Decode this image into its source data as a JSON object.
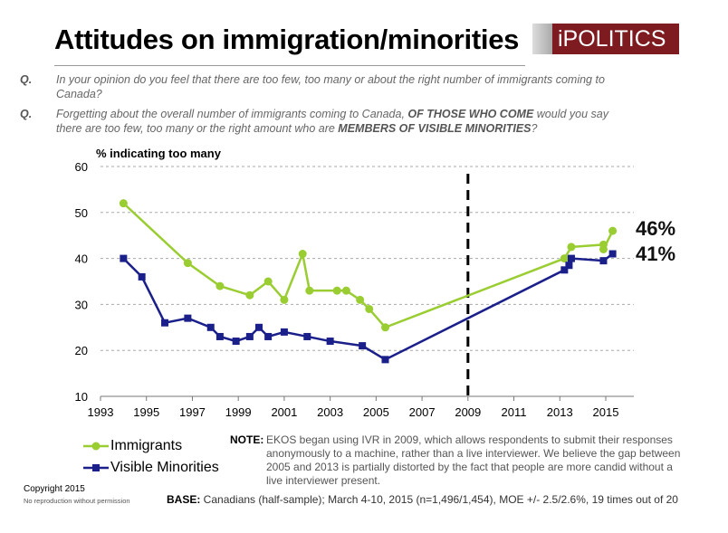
{
  "header": {
    "title": "Attitudes on immigration/minorities",
    "logo_text": "iPOLITICS"
  },
  "questions": [
    {
      "label": "Q.",
      "parts": [
        {
          "text": "In your opinion do you feel that there are too few, too many or about the right number of immigrants coming to Canada?",
          "bold": false
        }
      ]
    },
    {
      "label": "Q.",
      "parts": [
        {
          "text": "Forgetting about the overall number of immigrants coming to Canada, ",
          "bold": false
        },
        {
          "text": "OF THOSE WHO COME",
          "bold": true
        },
        {
          "text": " would you say there are too few, too many or the right amount who are ",
          "bold": false
        },
        {
          "text": "MEMBERS OF VISIBLE MINORITIES",
          "bold": true
        },
        {
          "text": "?",
          "bold": false
        }
      ]
    }
  ],
  "chart_data": {
    "type": "line",
    "ylabel": "% indicating too many",
    "xlim": [
      1993,
      2015
    ],
    "ylim": [
      10,
      60
    ],
    "xticks": [
      1993,
      1995,
      1997,
      1999,
      2001,
      2003,
      2005,
      2007,
      2009,
      2011,
      2013,
      2015
    ],
    "yticks": [
      10,
      20,
      30,
      40,
      50,
      60
    ],
    "grid": "horizontal dashed",
    "reference_line": {
      "x": 2009,
      "style": "dashed"
    },
    "legend_position": "bottom-left",
    "series": [
      {
        "name": "Immigrants",
        "color": "#9acd32",
        "marker": "circle",
        "x": [
          1994,
          1996.8,
          1998.2,
          1999.5,
          2000.3,
          2001,
          2001.8,
          2002.1,
          2003.3,
          2003.7,
          2004.3,
          2004.7,
          2005.4,
          2013.2,
          2013.5,
          2014.9,
          2014.9,
          2015.3
        ],
        "y": [
          52,
          39,
          34,
          32,
          35,
          31,
          41,
          33,
          33,
          33,
          31,
          29,
          25,
          40,
          42.5,
          43,
          42,
          46
        ],
        "end_label": "46%"
      },
      {
        "name": "Visible Minorities",
        "color": "#1a1f8a",
        "marker": "square",
        "x": [
          1994,
          1994.8,
          1995.8,
          1996.8,
          1997.8,
          1998.2,
          1998.9,
          1999.5,
          1999.9,
          2000.3,
          2001,
          2002,
          2003,
          2004.4,
          2005.4,
          2013.2,
          2013.4,
          2013.5,
          2014.9,
          2015.3
        ],
        "y": [
          40,
          36,
          26,
          27,
          25,
          23,
          22,
          23,
          25,
          23,
          24,
          23,
          22,
          21,
          18,
          37.5,
          38.5,
          40,
          39.5,
          41
        ],
        "end_label": "41%"
      }
    ]
  },
  "note": {
    "label": "NOTE:",
    "text": "EKOS began using IVR in 2009, which allows respondents to submit their responses anonymously to a machine, rather than a live interviewer. We  believe the gap between 2005 and 2013 is partially distorted by the fact that people are more candid without a live interviewer present."
  },
  "footer": {
    "copyright": "Copyright 2015",
    "permission": "No reproduction without permission",
    "base_label": "BASE:",
    "base_text": " Canadians (half-sample); March 4-10, 2015 (n=1,496/1,454), MOE +/- 2.5/2.6%, 19 times out of 20"
  }
}
